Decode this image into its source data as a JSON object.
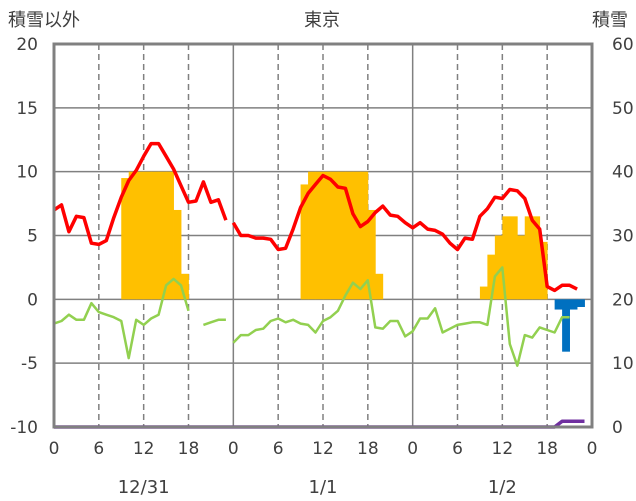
{
  "chart_data": {
    "type": "bar+line",
    "title": "東京",
    "ylabel_left": "積雪以外",
    "ylabel_right": "積雪",
    "ylim_left": [
      -10,
      20
    ],
    "ylim_right": [
      0,
      60
    ],
    "yticks_left": [
      "20",
      "15",
      "10",
      "5",
      "0",
      "-5",
      "-10"
    ],
    "yticks_right": [
      "60",
      "50",
      "40",
      "30",
      "20",
      "10",
      "0"
    ],
    "x_hour_ticks": [
      "0",
      "6",
      "12",
      "18",
      "0",
      "6",
      "12",
      "18",
      "0",
      "6",
      "12",
      "18",
      "0"
    ],
    "date_labels": [
      "12/31",
      "1/1",
      "1/2"
    ],
    "grid": "dashed at 6-hourly marks within each day, solid day separators",
    "colors": {
      "snow_depth": "#FFC000",
      "temperature": "#FF0000",
      "wind": "#92D050",
      "precipitation": "#0070C0",
      "snowfall": "#7030A0",
      "frame": "#808080"
    },
    "snow_depth_bars": {
      "unit_axis": "right",
      "hours": [
        8,
        9,
        10,
        11,
        12,
        13,
        14,
        15,
        16,
        17,
        32,
        33,
        34,
        35,
        36,
        37,
        38,
        39,
        40,
        41,
        42,
        43,
        57,
        58,
        59,
        60,
        61,
        62,
        63,
        64,
        65
      ],
      "values": [
        20,
        39,
        40,
        40,
        40,
        40,
        40,
        40,
        34,
        24,
        20,
        38,
        40,
        40,
        40,
        40,
        40,
        40,
        40,
        40,
        34,
        24,
        22,
        27,
        30,
        33,
        33,
        30,
        33,
        33,
        29
      ]
    },
    "precipitation_bars": {
      "unit_axis": "left",
      "hours": [
        67,
        68,
        69,
        70
      ],
      "values": [
        -0.8,
        -4.1,
        -0.8,
        -0.6
      ]
    },
    "series": [
      {
        "key": "temperature",
        "unit_axis": "left",
        "segments": [
          {
            "x": [
              0,
              1,
              2,
              3,
              4,
              5,
              6,
              7,
              8,
              9,
              10,
              11,
              12,
              13,
              14,
              15,
              16,
              17,
              18,
              19,
              20,
              21,
              22,
              23
            ],
            "y": [
              7.0,
              7.4,
              5.3,
              6.5,
              6.4,
              4.4,
              4.3,
              4.6,
              6.4,
              8.0,
              9.3,
              10.1,
              11.2,
              12.2,
              12.2,
              11.2,
              10.2,
              8.9,
              7.6,
              7.7,
              9.2,
              7.6,
              7.8,
              6.2
            ]
          },
          {
            "x": [
              24,
              25,
              26,
              27,
              28,
              29,
              30,
              31,
              32,
              33,
              34,
              35,
              36,
              37,
              38,
              39,
              40,
              41,
              42,
              43,
              44,
              45,
              46,
              47,
              48,
              49,
              50,
              51,
              52,
              53,
              54,
              55,
              56,
              57,
              58,
              59,
              60,
              61,
              62,
              63,
              64,
              65,
              66,
              67,
              68,
              69,
              70,
              71
            ],
            "y": [
              6.0,
              5.0,
              5.0,
              4.8,
              4.8,
              4.7,
              3.9,
              4.0,
              5.5,
              7.2,
              8.3,
              9.0,
              9.7,
              9.4,
              8.8,
              8.7,
              6.7,
              5.7,
              6.1,
              6.8,
              7.3,
              6.6,
              6.5,
              6.0,
              5.6,
              6.0,
              5.5,
              5.4,
              5.1,
              4.4,
              3.9,
              4.8,
              4.7,
              6.5,
              7.1,
              8.0,
              7.9,
              8.6,
              8.5,
              7.9,
              6.2,
              5.5,
              1.0,
              0.7,
              1.1,
              1.1,
              0.8,
              null
            ]
          }
        ]
      },
      {
        "key": "wind",
        "unit_axis": "left",
        "segments": [
          {
            "x": [
              0,
              1,
              2,
              3,
              4,
              5,
              6,
              7,
              8,
              9,
              10,
              11,
              12,
              13,
              14,
              15,
              16,
              17,
              18
            ],
            "y": [
              -1.9,
              -1.7,
              -1.2,
              -1.6,
              -1.6,
              -0.3,
              -1.0,
              -1.2,
              -1.4,
              -1.7,
              -4.6,
              -1.6,
              -2.0,
              -1.5,
              -1.2,
              1.1,
              1.6,
              1.1,
              -0.9
            ]
          },
          {
            "x": [
              20,
              21,
              22,
              23
            ],
            "y": [
              -2.0,
              -1.8,
              -1.6,
              -1.6
            ]
          },
          {
            "x": [
              24,
              25,
              26,
              27,
              28,
              29,
              30,
              31,
              32,
              33,
              34,
              35,
              36,
              37,
              38,
              39,
              40,
              41,
              42,
              43,
              44,
              45,
              46,
              47,
              48,
              49,
              50,
              51,
              52,
              53,
              54,
              55,
              56,
              57,
              58,
              59,
              60,
              61,
              62,
              63,
              64,
              65,
              66,
              67,
              68,
              69,
              70,
              71
            ],
            "y": [
              -3.4,
              -2.8,
              -2.8,
              -2.4,
              -2.3,
              -1.7,
              -1.5,
              -1.8,
              -1.6,
              -1.9,
              -2.0,
              -2.6,
              -1.7,
              -1.4,
              -0.9,
              0.3,
              1.3,
              0.8,
              1.5,
              -2.2,
              -2.3,
              -1.7,
              -1.7,
              -2.9,
              -2.5,
              -1.5,
              -1.5,
              -0.7,
              -2.6,
              -2.3,
              -2.0,
              -1.9,
              -1.8,
              -1.8,
              -2.0,
              1.8,
              2.5,
              -3.5,
              -5.2,
              -2.8,
              -3.0,
              -2.2,
              -2.4,
              -2.6,
              -1.4,
              -1.4,
              null,
              null
            ],
            "note": ""
          }
        ]
      },
      {
        "key": "snowfall",
        "unit_axis": "right",
        "segments": [
          {
            "x": [
              0,
              67,
              68,
              71
            ],
            "y": [
              0,
              0,
              0.9,
              0.9
            ]
          }
        ]
      }
    ]
  }
}
